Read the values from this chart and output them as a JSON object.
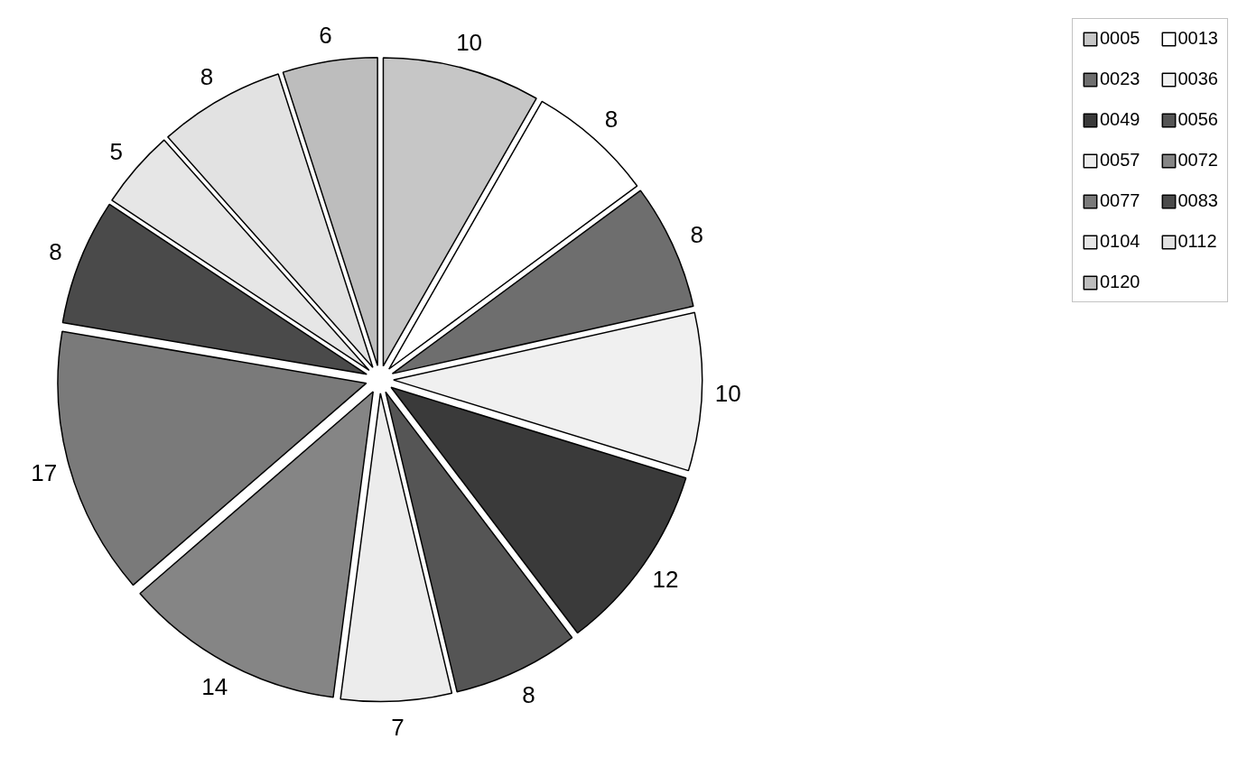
{
  "chart_data": {
    "type": "pie",
    "categories": [
      "0005",
      "0013",
      "0023",
      "0036",
      "0049",
      "0056",
      "0057",
      "0072",
      "0077",
      "0083",
      "0104",
      "0112",
      "0120"
    ],
    "values": [
      10,
      8,
      8,
      10,
      12,
      8,
      7,
      14,
      17,
      8,
      5,
      8,
      6
    ],
    "colors": [
      "#c6c6c6",
      "#ffffff",
      "#6e6e6e",
      "#f0f0f0",
      "#3a3a3a",
      "#555555",
      "#ececec",
      "#858585",
      "#7a7a7a",
      "#4a4a4a",
      "#e6e6e6",
      "#e2e2e2",
      "#bdbdbd"
    ],
    "data_labels": true,
    "legend": "right"
  }
}
